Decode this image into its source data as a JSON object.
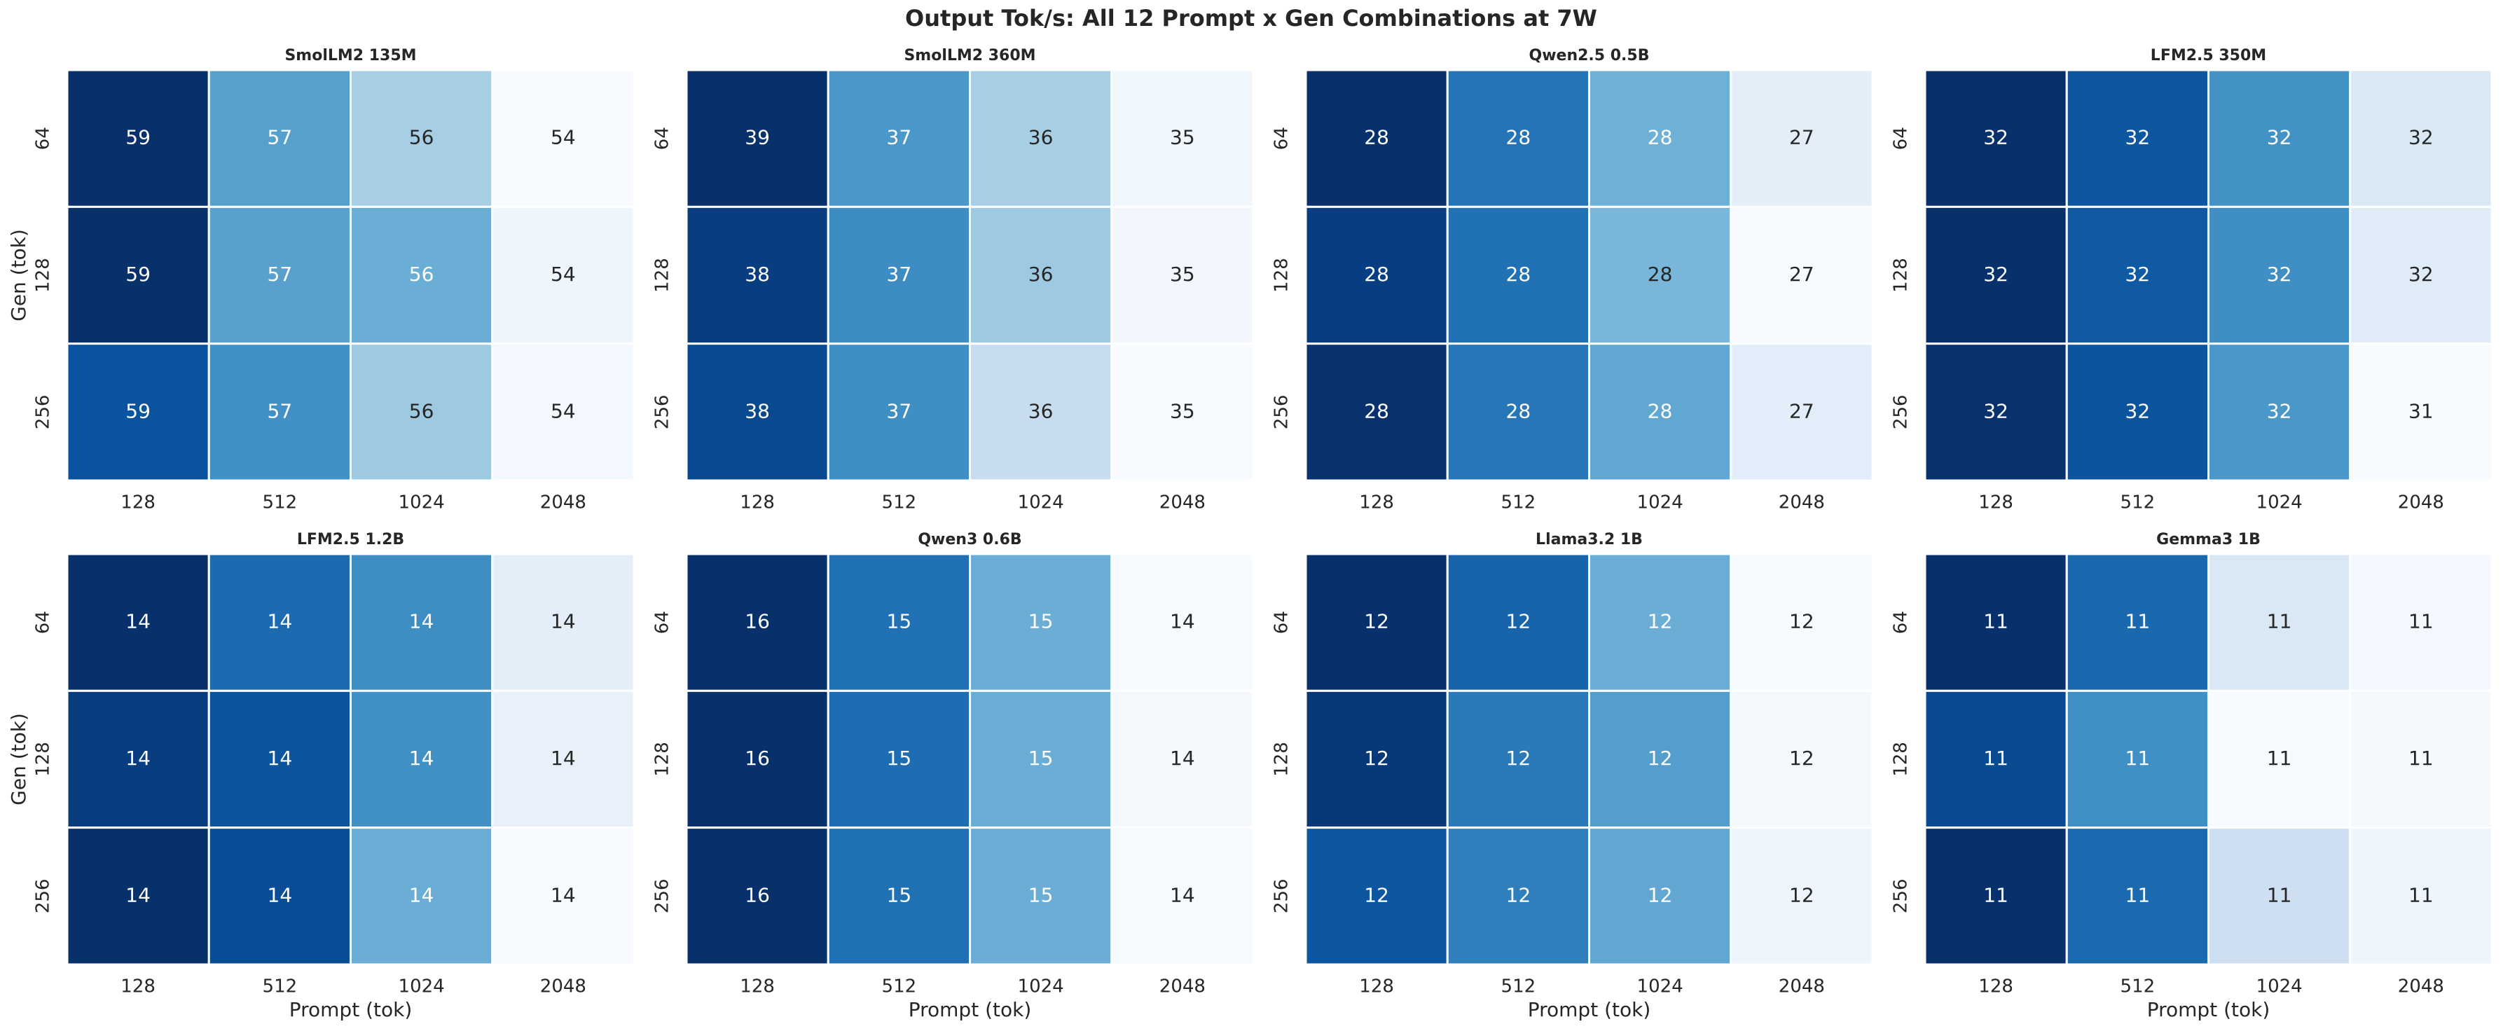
{
  "title": "Output Tok/s: All 12 Prompt x Gen Combinations at 7W",
  "chart_data": [
    {
      "type": "heatmap",
      "title": "SmolLM2 135M",
      "ylabel": "Gen (tok)",
      "x_categories": [
        "128",
        "512",
        "1024",
        "2048"
      ],
      "y_categories": [
        "64",
        "128",
        "256"
      ],
      "values": [
        [
          59,
          57,
          56,
          54
        ],
        [
          59,
          57,
          56,
          54
        ],
        [
          59,
          57,
          56,
          54
        ]
      ],
      "colors": [
        [
          "#08306b",
          "#56a0ce",
          "#a6cee4",
          "#f7fbff"
        ],
        [
          "#08306b",
          "#58a1cf",
          "#6aaed6",
          "#eef5fc"
        ],
        [
          "#0a539e",
          "#4191c6",
          "#9ecae1",
          "#f3f8fe"
        ]
      ]
    },
    {
      "type": "heatmap",
      "title": "SmolLM2 360M",
      "x_categories": [
        "128",
        "512",
        "1024",
        "2048"
      ],
      "y_categories": [
        "64",
        "128",
        "256"
      ],
      "values": [
        [
          39,
          37,
          36,
          35
        ],
        [
          38,
          37,
          36,
          35
        ],
        [
          38,
          37,
          36,
          35
        ]
      ],
      "colors": [
        [
          "#08306b",
          "#4a98c9",
          "#a6cee4",
          "#eff6fc"
        ],
        [
          "#083d7f",
          "#3d8dc4",
          "#9dc9e1",
          "#f1f7fd"
        ],
        [
          "#084990",
          "#3f8fc5",
          "#c8dcf0",
          "#f7fbff"
        ]
      ]
    },
    {
      "type": "heatmap",
      "title": "Qwen2.5 0.5B",
      "x_categories": [
        "128",
        "512",
        "1024",
        "2048"
      ],
      "y_categories": [
        "64",
        "128",
        "256"
      ],
      "values": [
        [
          28,
          28,
          28,
          27
        ],
        [
          28,
          28,
          28,
          27
        ],
        [
          28,
          28,
          28,
          27
        ]
      ],
      "colors": [
        [
          "#08306b",
          "#2474b7",
          "#6fb0d7",
          "#e3eef8"
        ],
        [
          "#083e81",
          "#2171b5",
          "#7ab6d9",
          "#f7fbff"
        ],
        [
          "#08316d",
          "#2676b8",
          "#60a7d2",
          "#e1edf8"
        ]
      ]
    },
    {
      "type": "heatmap",
      "title": "LFM2.5 350M",
      "x_categories": [
        "128",
        "512",
        "1024",
        "2048"
      ],
      "y_categories": [
        "64",
        "128",
        "256"
      ],
      "values": [
        [
          32,
          32,
          32,
          32
        ],
        [
          32,
          32,
          32,
          32
        ],
        [
          32,
          32,
          32,
          31
        ]
      ],
      "colors": [
        [
          "#08306b",
          "#0d57a1",
          "#4292c6",
          "#dae8f6"
        ],
        [
          "#08306b",
          "#0f5aa3",
          "#3f8fc5",
          "#dfebf7"
        ],
        [
          "#08326e",
          "#0b559f",
          "#4a98c9",
          "#f7fbff"
        ]
      ]
    },
    {
      "type": "heatmap",
      "title": "LFM2.5 1.2B",
      "ylabel": "Gen (tok)",
      "xlabel": "Prompt (tok)",
      "x_categories": [
        "128",
        "512",
        "1024",
        "2048"
      ],
      "y_categories": [
        "64",
        "128",
        "256"
      ],
      "values": [
        [
          14,
          14,
          14,
          14
        ],
        [
          14,
          14,
          14,
          14
        ],
        [
          14,
          14,
          14,
          14
        ]
      ],
      "colors": [
        [
          "#08306b",
          "#1c6ab0",
          "#3e8ec4",
          "#e3eef9"
        ],
        [
          "#083d7f",
          "#0b559f",
          "#4191c6",
          "#e8f1fa"
        ],
        [
          "#08306b",
          "#084d96",
          "#6aaed6",
          "#f7fbff"
        ]
      ]
    },
    {
      "type": "heatmap",
      "title": "Qwen3 0.6B",
      "xlabel": "Prompt (tok)",
      "x_categories": [
        "128",
        "512",
        "1024",
        "2048"
      ],
      "y_categories": [
        "64",
        "128",
        "256"
      ],
      "values": [
        [
          16,
          15,
          15,
          14
        ],
        [
          16,
          15,
          15,
          14
        ],
        [
          16,
          15,
          15,
          14
        ]
      ],
      "colors": [
        [
          "#08306b",
          "#2070b4",
          "#6aaed6",
          "#f7fbff"
        ],
        [
          "#08306b",
          "#1e6db2",
          "#6aaed6",
          "#f5f9fe"
        ],
        [
          "#08306b",
          "#2070b4",
          "#6aaed6",
          "#f5fafe"
        ]
      ]
    },
    {
      "type": "heatmap",
      "title": "Llama3.2 1B",
      "xlabel": "Prompt (tok)",
      "x_categories": [
        "128",
        "512",
        "1024",
        "2048"
      ],
      "y_categories": [
        "64",
        "128",
        "256"
      ],
      "values": [
        [
          12,
          12,
          12,
          12
        ],
        [
          12,
          12,
          12,
          12
        ],
        [
          12,
          12,
          12,
          12
        ]
      ],
      "colors": [
        [
          "#08306b",
          "#1764ab",
          "#6aaed6",
          "#f7fbff"
        ],
        [
          "#083877",
          "#2a7ab9",
          "#539ecd",
          "#f5f9fe"
        ],
        [
          "#0d57a1",
          "#2f7fbc",
          "#61a7d2",
          "#eef5fc"
        ]
      ]
    },
    {
      "type": "heatmap",
      "title": "Gemma3 1B",
      "xlabel": "Prompt (tok)",
      "x_categories": [
        "128",
        "512",
        "1024",
        "2048"
      ],
      "y_categories": [
        "64",
        "128",
        "256"
      ],
      "values": [
        [
          11,
          11,
          11,
          11
        ],
        [
          11,
          11,
          11,
          11
        ],
        [
          11,
          11,
          11,
          11
        ]
      ],
      "colors": [
        [
          "#08306b",
          "#1a68ae",
          "#dae8f6",
          "#f2f8fd"
        ],
        [
          "#0a4a90",
          "#4090c5",
          "#f7fbff",
          "#f5f9fe"
        ],
        [
          "#08306b",
          "#1b69af",
          "#cddff1",
          "#eef5fc"
        ]
      ]
    }
  ]
}
